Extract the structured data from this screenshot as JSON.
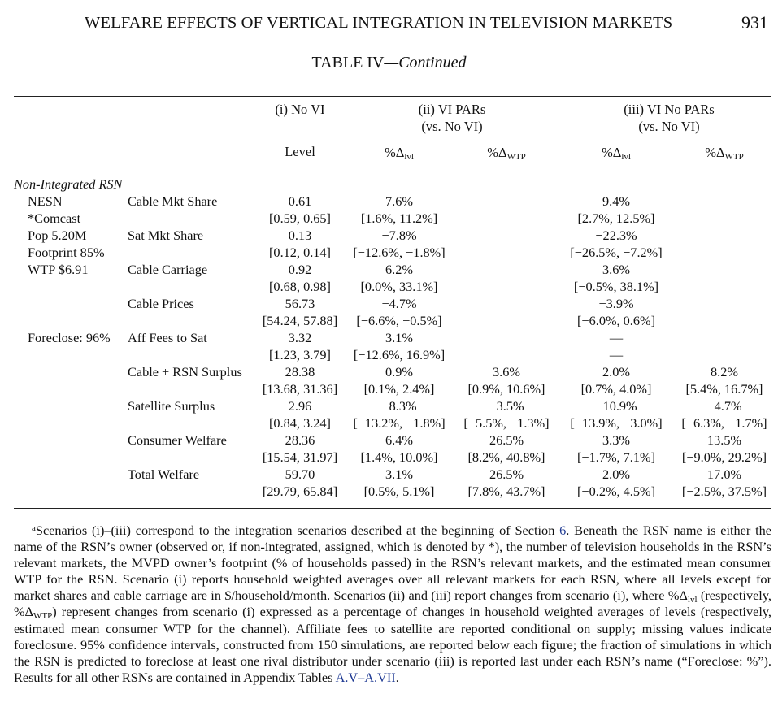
{
  "header": {
    "running_title": "WELFARE EFFECTS OF VERTICAL INTEGRATION IN TELEVISION MARKETS",
    "page_number": "931"
  },
  "table": {
    "title": "TABLE IV",
    "title_suffix": "—Continued",
    "columns": {
      "no_vi": "(i) No VI",
      "vi_pars_line1": "(ii) VI PARs",
      "vi_pars_line2": "(vs. No VI)",
      "vi_no_pars_line1": "(iii) VI No PARs",
      "vi_no_pars_line2": "(vs. No VI)",
      "level": "Level",
      "pct_prefix": "%Δ",
      "lvl_sub": "lvl",
      "wtp_sub": "WTP"
    },
    "section_label": "Non-Integrated RSN",
    "rsn_info": [
      "NESN",
      "*Comcast",
      "Pop 5.20M",
      "Footprint 85%",
      "WTP $6.91",
      "",
      "",
      "",
      "Foreclose: 96%"
    ],
    "rows": [
      {
        "label": "Cable Mkt Share",
        "level": "0.61",
        "level_ci": "[0.59, 0.65]",
        "ii_lvl": "7.6%",
        "ii_lvl_ci": "[1.6%, 11.2%]",
        "ii_wtp": "",
        "ii_wtp_ci": "",
        "iii_lvl": "9.4%",
        "iii_lvl_ci": "[2.7%, 12.5%]",
        "iii_wtp": "",
        "iii_wtp_ci": ""
      },
      {
        "label": "Sat Mkt Share",
        "level": "0.13",
        "level_ci": "[0.12, 0.14]",
        "ii_lvl": "−7.8%",
        "ii_lvl_ci": "[−12.6%, −1.8%]",
        "ii_wtp": "",
        "ii_wtp_ci": "",
        "iii_lvl": "−22.3%",
        "iii_lvl_ci": "[−26.5%, −7.2%]",
        "iii_wtp": "",
        "iii_wtp_ci": ""
      },
      {
        "label": "Cable Carriage",
        "level": "0.92",
        "level_ci": "[0.68, 0.98]",
        "ii_lvl": "6.2%",
        "ii_lvl_ci": "[0.0%, 33.1%]",
        "ii_wtp": "",
        "ii_wtp_ci": "",
        "iii_lvl": "3.6%",
        "iii_lvl_ci": "[−0.5%, 38.1%]",
        "iii_wtp": "",
        "iii_wtp_ci": ""
      },
      {
        "label": "Cable Prices",
        "level": "56.73",
        "level_ci": "[54.24, 57.88]",
        "ii_lvl": "−4.7%",
        "ii_lvl_ci": "[−6.6%, −0.5%]",
        "ii_wtp": "",
        "ii_wtp_ci": "",
        "iii_lvl": "−3.9%",
        "iii_lvl_ci": "[−6.0%, 0.6%]",
        "iii_wtp": "",
        "iii_wtp_ci": ""
      },
      {
        "label": "Aff Fees to Sat",
        "level": "3.32",
        "level_ci": "[1.23, 3.79]",
        "ii_lvl": "3.1%",
        "ii_lvl_ci": "[−12.6%, 16.9%]",
        "ii_wtp": "",
        "ii_wtp_ci": "",
        "iii_lvl": "—",
        "iii_lvl_ci": "—",
        "iii_wtp": "",
        "iii_wtp_ci": ""
      },
      {
        "label": "Cable + RSN Surplus",
        "level": "28.38",
        "level_ci": "[13.68, 31.36]",
        "ii_lvl": "0.9%",
        "ii_lvl_ci": "[0.1%, 2.4%]",
        "ii_wtp": "3.6%",
        "ii_wtp_ci": "[0.9%, 10.6%]",
        "iii_lvl": "2.0%",
        "iii_lvl_ci": "[0.7%, 4.0%]",
        "iii_wtp": "8.2%",
        "iii_wtp_ci": "[5.4%, 16.7%]"
      },
      {
        "label": "Satellite Surplus",
        "level": "2.96",
        "level_ci": "[0.84, 3.24]",
        "ii_lvl": "−8.3%",
        "ii_lvl_ci": "[−13.2%, −1.8%]",
        "ii_wtp": "−3.5%",
        "ii_wtp_ci": "[−5.5%, −1.3%]",
        "iii_lvl": "−10.9%",
        "iii_lvl_ci": "[−13.9%, −3.0%]",
        "iii_wtp": "−4.7%",
        "iii_wtp_ci": "[−6.3%, −1.7%]"
      },
      {
        "label": "Consumer Welfare",
        "level": "28.36",
        "level_ci": "[15.54, 31.97]",
        "ii_lvl": "6.4%",
        "ii_lvl_ci": "[1.4%, 10.0%]",
        "ii_wtp": "26.5%",
        "ii_wtp_ci": "[8.2%, 40.8%]",
        "iii_lvl": "3.3%",
        "iii_lvl_ci": "[−1.7%, 7.1%]",
        "iii_wtp": "13.5%",
        "iii_wtp_ci": "[−9.0%, 29.2%]"
      },
      {
        "label": "Total Welfare",
        "level": "59.70",
        "level_ci": "[29.79, 65.84]",
        "ii_lvl": "3.1%",
        "ii_lvl_ci": "[0.5%, 5.1%]",
        "ii_wtp": "26.5%",
        "ii_wtp_ci": "[7.8%, 43.7%]",
        "iii_lvl": "2.0%",
        "iii_lvl_ci": "[−0.2%, 4.5%]",
        "iii_wtp": "17.0%",
        "iii_wtp_ci": "[−2.5%, 37.5%]"
      }
    ]
  },
  "footnote": {
    "marker": "a",
    "part1": "Scenarios (i)–(iii) correspond to the integration scenarios described at the beginning of Section ",
    "section_link": "6",
    "part2": ". Beneath the RSN name is either the name of the RSN’s owner (observed or, if non-integrated, assigned, which is denoted by *), the number of television households in the RSN’s relevant markets, the MVPD owner’s footprint (% of households passed) in the RSN’s relevant markets, and the estimated mean consumer WTP for the RSN. Scenario (i) reports household weighted averages over all relevant markets for each RSN, where all levels except for market shares and cable carriage are in $/household/month. Scenarios (ii) and (iii) report changes from scenario (i), where %Δ",
    "sub_lvl": "lvl",
    "part3": " (respectively, %Δ",
    "sub_wtp": "WTP",
    "part4": ") represent changes from scenario (i) expressed as a percentage of changes in household weighted averages of levels (respectively, estimated mean consumer WTP for the channel). Affiliate fees to satellite are reported conditional on supply; missing values indicate foreclosure. 95% confidence intervals, constructed from 150 simulations, are reported below each figure; the fraction of simulations in which the RSN is predicted to foreclose at least one rival distributor under scenario (iii) is reported last under each RSN’s name (“Foreclose: %”). Results for all other RSNs are contained in Appendix Tables ",
    "appendix_link": "A.V–A.VII",
    "part5": "."
  }
}
